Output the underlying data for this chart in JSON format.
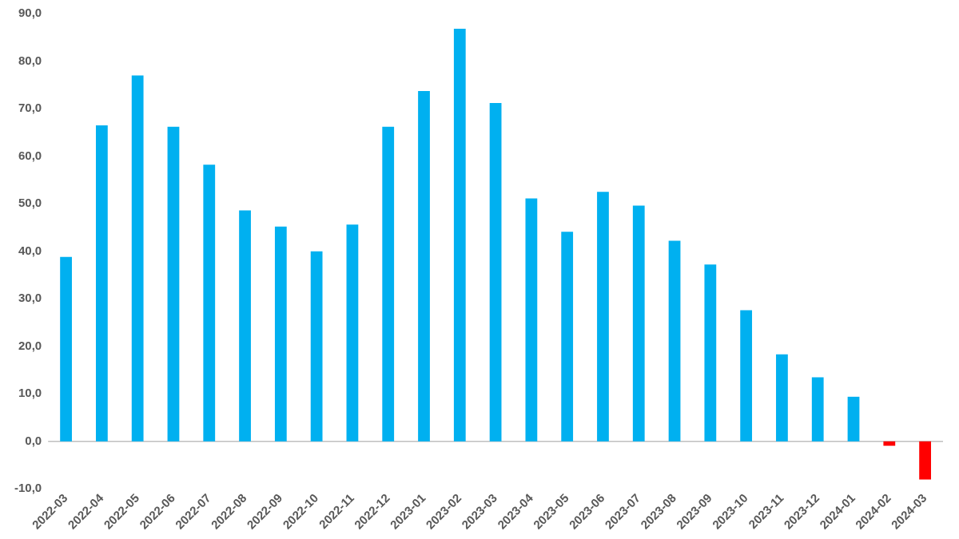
{
  "chart_data": {
    "type": "bar",
    "categories": [
      "2022-03",
      "2022-04",
      "2022-05",
      "2022-06",
      "2022-07",
      "2022-08",
      "2022-09",
      "2022-10",
      "2022-11",
      "2022-12",
      "2023-01",
      "2023-02",
      "2023-03",
      "2023-04",
      "2023-05",
      "2023-06",
      "2023-07",
      "2023-08",
      "2023-09",
      "2023-10",
      "2023-11",
      "2023-12",
      "2024-01",
      "2024-02",
      "2024-03"
    ],
    "values": [
      38.8,
      66.5,
      77.0,
      66.2,
      58.2,
      48.6,
      45.2,
      40.0,
      45.6,
      66.2,
      73.7,
      86.8,
      71.2,
      51.1,
      44.1,
      52.5,
      49.6,
      42.2,
      37.2,
      27.6,
      18.3,
      13.5,
      9.4,
      -0.9,
      -8.0
    ],
    "colors": [
      "#00b0f0",
      "#00b0f0",
      "#00b0f0",
      "#00b0f0",
      "#00b0f0",
      "#00b0f0",
      "#00b0f0",
      "#00b0f0",
      "#00b0f0",
      "#00b0f0",
      "#00b0f0",
      "#00b0f0",
      "#00b0f0",
      "#00b0f0",
      "#00b0f0",
      "#00b0f0",
      "#00b0f0",
      "#00b0f0",
      "#00b0f0",
      "#00b0f0",
      "#00b0f0",
      "#00b0f0",
      "#00b0f0",
      "#ff0000",
      "#ff0000"
    ],
    "ylim": [
      -10,
      90
    ],
    "yticks": [
      {
        "value": -10,
        "label": "-10,0"
      },
      {
        "value": 0,
        "label": "0,0"
      },
      {
        "value": 10,
        "label": "10,0"
      },
      {
        "value": 20,
        "label": "20,0"
      },
      {
        "value": 30,
        "label": "30,0"
      },
      {
        "value": 40,
        "label": "40,0"
      },
      {
        "value": 50,
        "label": "50,0"
      },
      {
        "value": 60,
        "label": "60,0"
      },
      {
        "value": 70,
        "label": "70,0"
      },
      {
        "value": 80,
        "label": "80,0"
      },
      {
        "value": 90,
        "label": "90,0"
      }
    ],
    "ref_lines": [
      {
        "axis": "y",
        "value": 0,
        "color": "#bfbfbf"
      }
    ],
    "grid": false,
    "legend": false
  }
}
